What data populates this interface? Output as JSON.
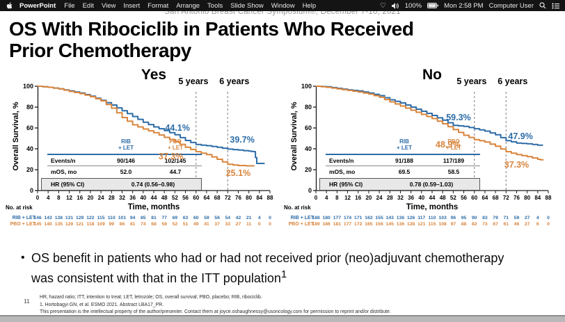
{
  "menu_bar": {
    "app_name": "PowerPoint",
    "menus": [
      "File",
      "Edit",
      "View",
      "Insert",
      "Format",
      "Arrange",
      "Tools",
      "Slide Show",
      "Window",
      "Help"
    ],
    "status": {
      "battery_pct": "100%",
      "clock": "Mon 2:58 PM",
      "user": "Computer User"
    }
  },
  "slide": {
    "conference_header": "San Antonio Breast Cancer Symposium®, December 7-10, 2021",
    "title_line1": "OS With Ribociclib in Patients Who Received",
    "title_line2": "Prior Chemotherapy",
    "bullet_text": "OS benefit in patients who had or had not received prior (neo)adjuvant chemotherapy was consistent with that in the ITT population",
    "bullet_sup": "1",
    "slide_number": "11",
    "footnote_line1": "HR, hazard ratio; ITT, intention to treat; LET, letrozole; OS, overall survival; PBO, placebo; RIB, ribociclib.",
    "footnote_line2": "1. Hortobagyi GN, et al. ESMO 2021. Abstract LBA17_PR.",
    "footnote_line3": "This presentation is the intellectual property of the author/presenter. Contact them at joyce.oshaughnessy@usoncology.com for permission to reprint and/or distribute."
  },
  "colors": {
    "rib_blue": "#2d6ca7",
    "pbo_orange": "#d9843b"
  },
  "chart_data": [
    {
      "type": "line",
      "title": "Yes",
      "ylabel": "Overall Survival, %",
      "xlabel": "Time, months",
      "xlim": [
        0,
        88
      ],
      "ylim": [
        0,
        100
      ],
      "xticks": [
        0,
        4,
        8,
        12,
        16,
        20,
        24,
        28,
        32,
        36,
        40,
        44,
        48,
        52,
        56,
        60,
        64,
        68,
        72,
        76,
        80,
        84,
        88
      ],
      "yticks": [
        0,
        20,
        40,
        60,
        80,
        100
      ],
      "milestones": [
        {
          "label": "5 years",
          "line_x": 60,
          "label_x": 59
        },
        {
          "label": "6 years",
          "line_x": 72,
          "label_x": 74.5
        }
      ],
      "series": [
        {
          "name": "RIB + LET",
          "color": "#2d6ca7",
          "x": [
            0,
            4,
            8,
            12,
            16,
            20,
            24,
            28,
            32,
            36,
            40,
            44,
            48,
            52,
            56,
            60,
            64,
            68,
            72,
            76,
            80,
            82,
            83,
            86
          ],
          "y": [
            100,
            99,
            97.5,
            95.5,
            93.5,
            90.5,
            86.5,
            82,
            76.5,
            71,
            65.5,
            61,
            57.5,
            53.5,
            48,
            44.1,
            43,
            41.5,
            39.7,
            38.8,
            37.8,
            37.3,
            26,
            26
          ]
        },
        {
          "name": "PBO + LET",
          "color": "#d9843b",
          "x": [
            0,
            4,
            8,
            12,
            16,
            20,
            24,
            28,
            32,
            36,
            40,
            44,
            48,
            52,
            56,
            60,
            64,
            68,
            72,
            76,
            82
          ],
          "y": [
            100,
            99,
            97.5,
            95,
            93,
            90,
            86,
            79,
            70,
            63,
            59,
            55.5,
            51,
            47,
            41.5,
            37.3,
            34.5,
            30,
            25.1,
            24,
            23.3
          ]
        }
      ],
      "annotations": [
        {
          "text": "44.1%",
          "x": 53,
          "y": 60,
          "color": "#2d6ca7"
        },
        {
          "text": "39.7%",
          "x": 77.5,
          "y": 49,
          "color": "#2d6ca7"
        },
        {
          "text": "37.3%",
          "x": 50.5,
          "y": 33,
          "color": "#d9843b"
        },
        {
          "text": "25.1%",
          "x": 76,
          "y": 17,
          "color": "#d9843b"
        }
      ],
      "inset": {
        "col1": {
          "l1": "RIB",
          "l2": "+ LET"
        },
        "col2": {
          "l1": "PBO",
          "l2": "+ LET"
        },
        "rows": [
          {
            "label": "Events/n",
            "v1": "90/146",
            "v2": "102/145"
          },
          {
            "label": "mOS, mo",
            "v1": "52.0",
            "v2": "44.7"
          }
        ],
        "hr_label": "HR (95% CI)",
        "hr_value": "0.74 (0.56–0.98)"
      },
      "at_risk_label": "No. at risk",
      "at_risk": [
        {
          "name": "RIB + LET",
          "color": "#2d6ca7",
          "values": [
            146,
            143,
            138,
            131,
            129,
            122,
            115,
            110,
            101,
            94,
            85,
            81,
            77,
            69,
            63,
            60,
            59,
            56,
            54,
            42,
            21,
            4,
            0
          ]
        },
        {
          "name": "PBO + LET",
          "color": "#d9843b",
          "values": [
            145,
            140,
            135,
            129,
            121,
            118,
            109,
            99,
            86,
            81,
            74,
            68,
            59,
            52,
            51,
            49,
            41,
            37,
            33,
            27,
            11,
            0,
            0
          ]
        }
      ]
    },
    {
      "type": "line",
      "title": "No",
      "ylabel": "Overall Survival, %",
      "xlabel": "Time, months",
      "xlim": [
        0,
        88
      ],
      "ylim": [
        0,
        100
      ],
      "xticks": [
        0,
        4,
        8,
        12,
        16,
        20,
        24,
        28,
        32,
        36,
        40,
        44,
        48,
        52,
        56,
        60,
        64,
        68,
        72,
        76,
        80,
        84,
        88
      ],
      "yticks": [
        0,
        20,
        40,
        60,
        80,
        100
      ],
      "milestones": [
        {
          "label": "5 years",
          "line_x": 60,
          "label_x": 59
        },
        {
          "label": "6 years",
          "line_x": 72,
          "label_x": 74.5
        }
      ],
      "series": [
        {
          "name": "RIB + LET",
          "color": "#2d6ca7",
          "x": [
            0,
            4,
            8,
            12,
            16,
            20,
            24,
            28,
            32,
            36,
            40,
            44,
            48,
            52,
            56,
            60,
            64,
            68,
            72,
            76,
            80,
            84,
            86
          ],
          "y": [
            100,
            99.5,
            98,
            96.5,
            95.5,
            93.5,
            91,
            87,
            84,
            80,
            76,
            72,
            67.5,
            62.5,
            61.5,
            59.3,
            57,
            53.5,
            47.9,
            45.5,
            44.8,
            43.5,
            43.5
          ]
        },
        {
          "name": "PBO + LET",
          "color": "#d9843b",
          "x": [
            0,
            4,
            8,
            12,
            16,
            20,
            24,
            28,
            32,
            36,
            40,
            44,
            48,
            52,
            56,
            60,
            64,
            68,
            72,
            76,
            80,
            84,
            86
          ],
          "y": [
            100,
            99,
            97.5,
            96,
            94.5,
            92.5,
            89.5,
            85,
            81,
            77,
            73,
            69,
            64,
            58.5,
            53,
            48.9,
            46.5,
            42.5,
            37.3,
            34.5,
            32.5,
            30,
            29
          ]
        }
      ],
      "annotations": [
        {
          "text": "59.3%",
          "x": 54,
          "y": 70,
          "color": "#2d6ca7"
        },
        {
          "text": "47.9%",
          "x": 77.5,
          "y": 52,
          "color": "#2d6ca7"
        },
        {
          "text": "48.9%",
          "x": 50,
          "y": 44,
          "color": "#d9843b"
        },
        {
          "text": "37.3%",
          "x": 76,
          "y": 25,
          "color": "#d9843b"
        }
      ],
      "inset": {
        "col1": {
          "l1": "RIB",
          "l2": "+ LET"
        },
        "col2": {
          "l1": "PBO",
          "l2": "+ LET"
        },
        "rows": [
          {
            "label": "Events/n",
            "v1": "91/188",
            "v2": "117/189"
          },
          {
            "label": "mOS, mo",
            "v1": "69.5",
            "v2": "58.5"
          }
        ],
        "hr_label": "HR (95% CI)",
        "hr_value": "0.78 (0.59–1.03)"
      },
      "at_risk_label": "No. at risk",
      "at_risk": [
        {
          "name": "RIB + LET",
          "color": "#2d6ca7",
          "values": [
            188,
            180,
            177,
            174,
            171,
            162,
            155,
            143,
            136,
            126,
            117,
            110,
            103,
            96,
            95,
            90,
            83,
            79,
            71,
            59,
            27,
            4,
            0
          ]
        },
        {
          "name": "PBO + LET",
          "color": "#d9843b",
          "values": [
            189,
            186,
            181,
            177,
            172,
            165,
            156,
            145,
            136,
            128,
            121,
            115,
            108,
            97,
            88,
            82,
            73,
            67,
            61,
            46,
            27,
            6,
            0
          ]
        }
      ]
    }
  ]
}
